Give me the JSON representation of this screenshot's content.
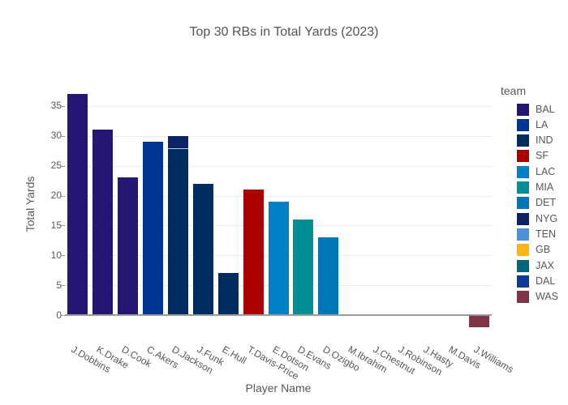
{
  "chart_data": {
    "type": "bar",
    "stacked": true,
    "title": "Top 30 RBs in Total Yards (2023)",
    "xlabel": "Player Name",
    "ylabel": "Total Yards",
    "yticks": [
      0,
      5,
      10,
      15,
      20,
      25,
      30,
      35
    ],
    "ylim": [
      -3.5,
      38.5
    ],
    "grid": true,
    "legend_position": "right",
    "legend_title": "team",
    "teams": [
      {
        "name": "BAL",
        "color": "#241773"
      },
      {
        "name": "LA",
        "color": "#003693"
      },
      {
        "name": "IND",
        "color": "#002C5F"
      },
      {
        "name": "SF",
        "color": "#AA0000"
      },
      {
        "name": "LAC",
        "color": "#0080C6"
      },
      {
        "name": "MIA",
        "color": "#008E97"
      },
      {
        "name": "DET",
        "color": "#0076B6"
      },
      {
        "name": "NYG",
        "color": "#0B2265"
      },
      {
        "name": "TEN",
        "color": "#4B92DB"
      },
      {
        "name": "GB",
        "color": "#FFB612"
      },
      {
        "name": "JAX",
        "color": "#006778"
      },
      {
        "name": "DAL",
        "color": "#0D3A94"
      },
      {
        "name": "WAS",
        "color": "#7E3445"
      }
    ],
    "players": [
      {
        "name": "J.Dobbins",
        "total": 37,
        "segments": [
          {
            "team": "BAL",
            "value": 37
          }
        ]
      },
      {
        "name": "K.Drake",
        "total": 31,
        "segments": [
          {
            "team": "BAL",
            "value": 31
          }
        ]
      },
      {
        "name": "D.Cook",
        "total": 23,
        "segments": [
          {
            "team": "BAL",
            "value": 23
          }
        ]
      },
      {
        "name": "C.Akers",
        "total": 29,
        "segments": [
          {
            "team": "LA",
            "value": 29
          }
        ]
      },
      {
        "name": "D.Jackson",
        "total": 30,
        "segments": [
          {
            "team": "IND",
            "value": 28
          },
          {
            "team": "NYG",
            "value": 2
          }
        ]
      },
      {
        "name": "J.Funk",
        "total": 22,
        "segments": [
          {
            "team": "IND",
            "value": 22
          }
        ]
      },
      {
        "name": "E.Hull",
        "total": 7,
        "segments": [
          {
            "team": "IND",
            "value": 7
          }
        ]
      },
      {
        "name": "T.Davis-Price",
        "total": 21,
        "segments": [
          {
            "team": "SF",
            "value": 21
          }
        ]
      },
      {
        "name": "E.Dotson",
        "total": 19,
        "segments": [
          {
            "team": "LAC",
            "value": 19
          }
        ]
      },
      {
        "name": "D.Evans",
        "total": 16,
        "segments": [
          {
            "team": "MIA",
            "value": 16
          }
        ]
      },
      {
        "name": "D.Ozigbo",
        "total": 13,
        "segments": [
          {
            "team": "DET",
            "value": 13
          }
        ]
      },
      {
        "name": "M.Ibrahim",
        "total": 0,
        "segments": []
      },
      {
        "name": "J.Chestnut",
        "total": 0,
        "segments": []
      },
      {
        "name": "J.Robinson",
        "total": 0,
        "segments": []
      },
      {
        "name": "J.Hasty",
        "total": 0,
        "segments": []
      },
      {
        "name": "M.Davis",
        "total": 0,
        "segments": []
      },
      {
        "name": "J.Williams",
        "total": -2,
        "segments": [
          {
            "team": "WAS",
            "value": -2
          }
        ]
      }
    ],
    "colors": {
      "text": "#53585e",
      "grid": "#eaedf0",
      "axis_line": "#9a9a9a",
      "background": "#ffffff"
    }
  }
}
